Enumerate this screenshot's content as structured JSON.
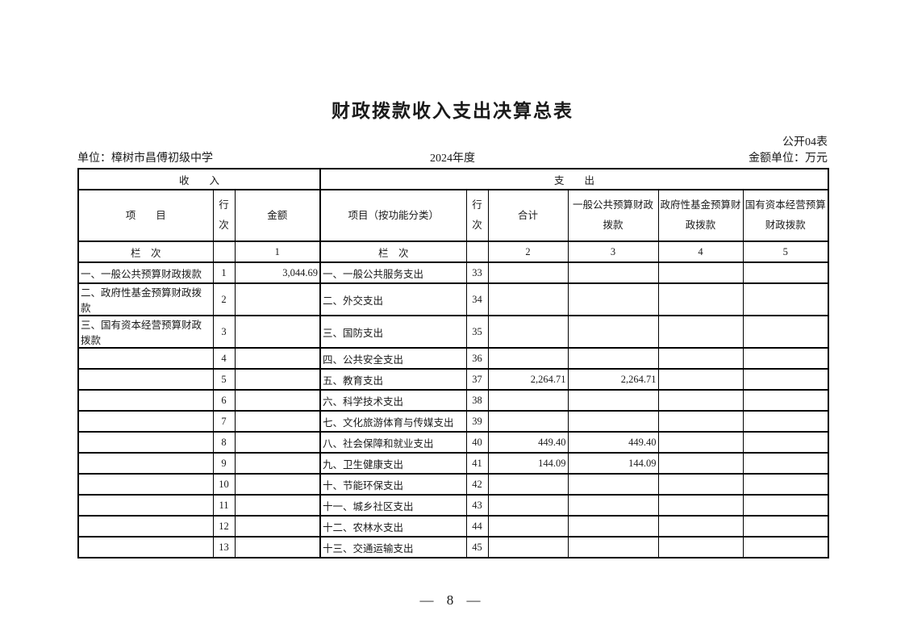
{
  "page": {
    "title": "财政拨款收入支出决算总表",
    "form_code": "公开04表",
    "unit": "单位：樟树市昌傅初级中学",
    "year": "2024年度",
    "amount_unit": "金额单位：万元",
    "page_number": "— 8 —"
  },
  "table": {
    "sections": {
      "income": "收　　入",
      "expense": "支　　出"
    },
    "headers": {
      "income_item": "项　　目",
      "income_row_no": "行次",
      "income_amount": "金额",
      "expense_item": "项目（按功能分类）",
      "expense_row_no": "行次",
      "total": "合计",
      "general_budget": "一般公共预算财政拨款",
      "gov_fund": "政府性基金预算财政拨款",
      "state_capital": "国有资本经营预算财政拨款"
    },
    "index_row": {
      "income_label": "栏　次",
      "income_no_blank": "",
      "c1": "1",
      "expense_label": "栏　次",
      "expense_no_blank": "",
      "c2": "2",
      "c3": "3",
      "c4": "4",
      "c5": "5"
    },
    "rows": [
      {
        "income_item": "一、一般公共预算财政拨款",
        "income_no": "1",
        "income_amount": "3,044.69",
        "expense_item": "一、一般公共服务支出",
        "expense_no": "33",
        "total": "",
        "general": "",
        "fund": "",
        "state": ""
      },
      {
        "income_item": "二、政府性基金预算财政拨款",
        "income_no": "2",
        "income_amount": "",
        "expense_item": "二、外交支出",
        "expense_no": "34",
        "total": "",
        "general": "",
        "fund": "",
        "state": ""
      },
      {
        "income_item": "三、国有资本经营预算财政拨款",
        "income_no": "3",
        "income_amount": "",
        "expense_item": "三、国防支出",
        "expense_no": "35",
        "total": "",
        "general": "",
        "fund": "",
        "state": ""
      },
      {
        "income_item": "",
        "income_no": "4",
        "income_amount": "",
        "expense_item": "四、公共安全支出",
        "expense_no": "36",
        "total": "",
        "general": "",
        "fund": "",
        "state": ""
      },
      {
        "income_item": "",
        "income_no": "5",
        "income_amount": "",
        "expense_item": "五、教育支出",
        "expense_no": "37",
        "total": "2,264.71",
        "general": "2,264.71",
        "fund": "",
        "state": ""
      },
      {
        "income_item": "",
        "income_no": "6",
        "income_amount": "",
        "expense_item": "六、科学技术支出",
        "expense_no": "38",
        "total": "",
        "general": "",
        "fund": "",
        "state": ""
      },
      {
        "income_item": "",
        "income_no": "7",
        "income_amount": "",
        "expense_item": "七、文化旅游体育与传媒支出",
        "expense_no": "39",
        "total": "",
        "general": "",
        "fund": "",
        "state": ""
      },
      {
        "income_item": "",
        "income_no": "8",
        "income_amount": "",
        "expense_item": "八、社会保障和就业支出",
        "expense_no": "40",
        "total": "449.40",
        "general": "449.40",
        "fund": "",
        "state": ""
      },
      {
        "income_item": "",
        "income_no": "9",
        "income_amount": "",
        "expense_item": "九、卫生健康支出",
        "expense_no": "41",
        "total": "144.09",
        "general": "144.09",
        "fund": "",
        "state": ""
      },
      {
        "income_item": "",
        "income_no": "10",
        "income_amount": "",
        "expense_item": "十、节能环保支出",
        "expense_no": "42",
        "total": "",
        "general": "",
        "fund": "",
        "state": ""
      },
      {
        "income_item": "",
        "income_no": "11",
        "income_amount": "",
        "expense_item": "十一、城乡社区支出",
        "expense_no": "43",
        "total": "",
        "general": "",
        "fund": "",
        "state": ""
      },
      {
        "income_item": "",
        "income_no": "12",
        "income_amount": "",
        "expense_item": "十二、农林水支出",
        "expense_no": "44",
        "total": "",
        "general": "",
        "fund": "",
        "state": ""
      },
      {
        "income_item": "",
        "income_no": "13",
        "income_amount": "",
        "expense_item": "十三、交通运输支出",
        "expense_no": "45",
        "total": "",
        "general": "",
        "fund": "",
        "state": ""
      }
    ]
  }
}
